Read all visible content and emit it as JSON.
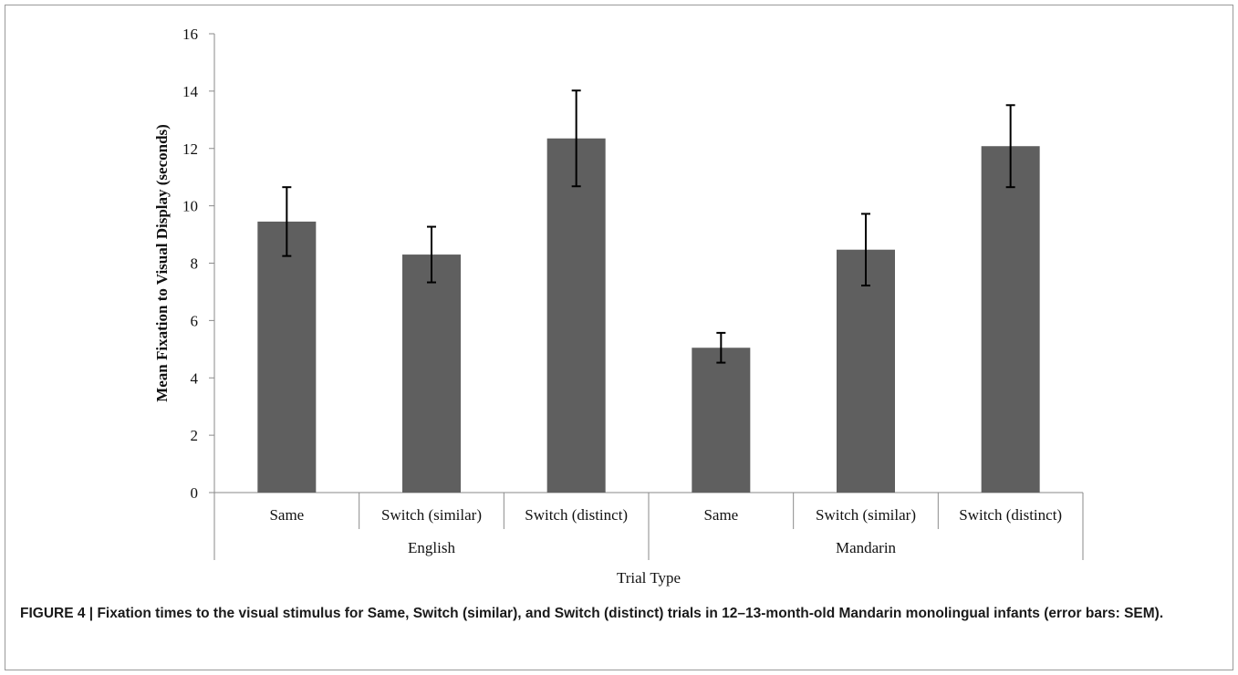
{
  "chart_data": {
    "type": "bar",
    "ylabel": "Mean Fixation to Visual Display (seconds)",
    "xlabel": "Trial Type",
    "ylim": [
      0,
      16
    ],
    "yticks": [
      0,
      2,
      4,
      6,
      8,
      10,
      12,
      14,
      16
    ],
    "groups": [
      {
        "name": "English",
        "categories": [
          "Same",
          "Switch (similar)",
          "Switch (distinct)"
        ],
        "values": [
          9.45,
          8.3,
          12.35
        ],
        "errors": [
          1.2,
          0.97,
          1.67
        ]
      },
      {
        "name": "Mandarin",
        "categories": [
          "Same",
          "Switch (similar)",
          "Switch (distinct)"
        ],
        "values": [
          5.05,
          8.47,
          12.08
        ],
        "errors": [
          0.52,
          1.25,
          1.43
        ]
      }
    ],
    "bar_color": "#5f5f5f",
    "grid": false,
    "legend": "none"
  },
  "caption": {
    "label": "FIGURE 4 |",
    "text": "Fixation times to the visual stimulus for Same, Switch (similar), and Switch (distinct) trials in 12–13-month-old Mandarin monolingual infants (error bars: SEM)."
  }
}
